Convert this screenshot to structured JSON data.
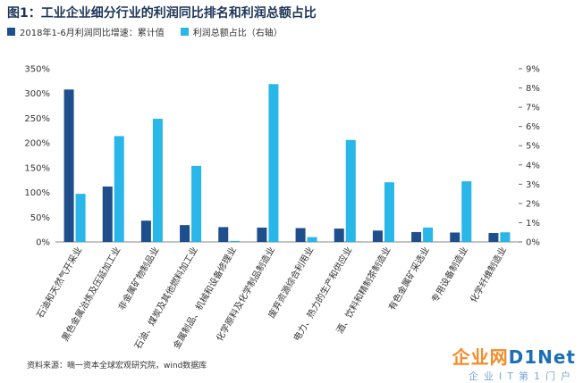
{
  "title": "图1：工业企业细分行业的利润同比排名和利润总额占比",
  "legend": [
    {
      "label": "2018年1-6月利润同比增速：累计值",
      "color": "#1f4e8c"
    },
    {
      "label": "利润总额占比（右轴）",
      "color": "#29b6e8"
    }
  ],
  "source": "资料来源：嘀一资本全球宏观研究院，wind数据库",
  "watermark": {
    "logo_a": "企业网",
    "logo_b": "D1Net",
    "sub": "企业IT第1门户"
  },
  "chart_data": {
    "type": "bar",
    "categories": [
      "石油和天然气开采业",
      "黑色金属冶炼及压延加工业",
      "非金属矿物制品业",
      "石油、煤炭及其他燃料加工业",
      "金属制品、机械和设备修理业",
      "化学原料及化学制品制造业",
      "废弃资源综合利用业",
      "电力、热力的生产和供应业",
      "酒、饮料和精制茶制造业",
      "有色金属矿采选业",
      "专用设备制造业",
      "化学纤维制造业"
    ],
    "series": [
      {
        "name": "2018年1-6月利润同比增速：累计值",
        "axis": "left",
        "color": "#1f4e8c",
        "values": [
          308,
          112,
          43,
          34,
          30,
          29,
          28,
          27,
          23,
          20,
          19,
          18
        ]
      },
      {
        "name": "利润总额占比（右轴）",
        "axis": "right",
        "color": "#29b6e8",
        "values": [
          2.5,
          5.5,
          6.4,
          3.95,
          0.05,
          8.2,
          0.25,
          5.3,
          3.1,
          0.75,
          3.15,
          0.5
        ]
      }
    ],
    "y_left": {
      "min": 0,
      "max": 350,
      "step": 50,
      "suffix": "%"
    },
    "y_right": {
      "min": 0,
      "max": 9,
      "step": 1,
      "suffix": "%"
    },
    "grid": false
  }
}
